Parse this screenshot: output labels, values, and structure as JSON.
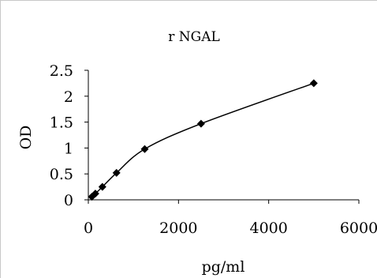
{
  "chart_data": {
    "type": "line",
    "title": "r NGAL",
    "xlabel": "pg/ml",
    "ylabel": "OD",
    "xlim": [
      0,
      6000
    ],
    "ylim": [
      0,
      2.5
    ],
    "xticks": [
      0,
      2000,
      4000,
      6000
    ],
    "xtick_labels": [
      "0",
      "2000",
      "4000",
      "6000"
    ],
    "yticks": [
      0,
      0.5,
      1,
      1.5,
      2,
      2.5
    ],
    "ytick_labels": [
      "0",
      "0.5",
      "1",
      "1.5",
      "2",
      "2.5"
    ],
    "grid": false,
    "series": [
      {
        "marker": "diamond",
        "color": "#000000",
        "x": [
          78,
          156,
          312,
          625,
          1250,
          2500,
          5000
        ],
        "y": [
          0.06,
          0.12,
          0.25,
          0.52,
          0.98,
          1.47,
          2.25
        ]
      }
    ]
  }
}
